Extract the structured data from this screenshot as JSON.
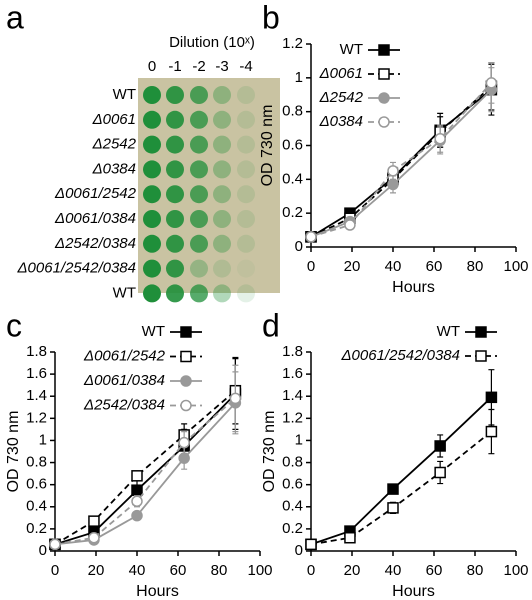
{
  "spot_assay": {
    "label": "a",
    "title": "Dilution (10ˣ)",
    "columns": [
      "0",
      "-1",
      "-2",
      "-3",
      "-4"
    ],
    "rows": [
      "WT",
      "Δ0061",
      "Δ2542",
      "Δ0384",
      "Δ0061/2542",
      "Δ0061/0384",
      "Δ2542/0384",
      "Δ0061/2542/0384",
      "WT"
    ]
  },
  "chart_data": [
    {
      "type": "line",
      "label": "b",
      "xlabel": "Hours",
      "ylabel": "OD 730 nm",
      "xlim": [
        0,
        100
      ],
      "xticks": [
        0,
        20,
        40,
        60,
        80,
        100
      ],
      "ylim": [
        0,
        1.2
      ],
      "yticks": [
        0,
        0.2,
        0.4,
        0.6,
        0.8,
        1,
        1.2
      ],
      "x": [
        0,
        19,
        40,
        63,
        88
      ],
      "series": [
        {
          "name": "WT",
          "color": "#000000",
          "dash": false,
          "marker": "square",
          "filled": true,
          "values": [
            0.06,
            0.2,
            0.41,
            0.69,
            0.93
          ],
          "errors": [
            0.01,
            0.03,
            0.06,
            0.1,
            0.15
          ]
        },
        {
          "name": "Δ0061",
          "color": "#000000",
          "dash": true,
          "marker": "square",
          "filled": false,
          "values": [
            0.06,
            0.17,
            0.4,
            0.68,
            0.95
          ],
          "errors": [
            0.01,
            0.03,
            0.05,
            0.09,
            0.14
          ]
        },
        {
          "name": "Δ2542",
          "color": "#999999",
          "dash": false,
          "marker": "circle",
          "filled": true,
          "values": [
            0.06,
            0.15,
            0.37,
            0.63,
            0.93
          ],
          "errors": [
            0.01,
            0.02,
            0.05,
            0.08,
            0.13
          ]
        },
        {
          "name": "Δ0384",
          "color": "#999999",
          "dash": true,
          "marker": "circle",
          "filled": false,
          "values": [
            0.06,
            0.13,
            0.45,
            0.64,
            0.97
          ],
          "errors": [
            0.01,
            0.02,
            0.05,
            0.08,
            0.12
          ]
        }
      ]
    },
    {
      "type": "line",
      "label": "c",
      "xlabel": "Hours",
      "ylabel": "OD 730 nm",
      "xlim": [
        0,
        100
      ],
      "xticks": [
        0,
        20,
        40,
        60,
        80,
        100
      ],
      "ylim": [
        0,
        1.8
      ],
      "yticks": [
        0,
        0.2,
        0.4,
        0.6,
        0.8,
        1,
        1.2,
        1.4,
        1.6,
        1.8
      ],
      "x": [
        0,
        19,
        40,
        63,
        88
      ],
      "series": [
        {
          "name": "WT",
          "color": "#000000",
          "dash": false,
          "marker": "square",
          "filled": true,
          "values": [
            0.06,
            0.17,
            0.55,
            0.95,
            1.42
          ],
          "errors": [
            0.01,
            0.03,
            0.1,
            0.15,
            0.32
          ]
        },
        {
          "name": "Δ0061/2542",
          "color": "#000000",
          "dash": true,
          "marker": "square",
          "filled": false,
          "values": [
            0.06,
            0.27,
            0.68,
            1.05,
            1.45
          ],
          "errors": [
            0.01,
            0.02,
            0.04,
            0.1,
            0.3
          ]
        },
        {
          "name": "Δ0061/0384",
          "color": "#999999",
          "dash": false,
          "marker": "circle",
          "filled": true,
          "values": [
            0.06,
            0.1,
            0.32,
            0.84,
            1.34
          ],
          "errors": [
            0.01,
            0.02,
            0.03,
            0.1,
            0.28
          ]
        },
        {
          "name": "Δ2542/0384",
          "color": "#999999",
          "dash": true,
          "marker": "circle",
          "filled": false,
          "values": [
            0.06,
            0.12,
            0.45,
            0.98,
            1.38
          ],
          "errors": [
            0.01,
            0.02,
            0.05,
            0.1,
            0.3
          ]
        }
      ]
    },
    {
      "type": "line",
      "label": "d",
      "xlabel": "Hours",
      "ylabel": "OD 730 nm",
      "xlim": [
        0,
        100
      ],
      "xticks": [
        0,
        20,
        40,
        60,
        80,
        100
      ],
      "ylim": [
        0,
        1.8
      ],
      "yticks": [
        0,
        0.2,
        0.4,
        0.6,
        0.8,
        1,
        1.2,
        1.4,
        1.6,
        1.8
      ],
      "x": [
        0,
        19,
        40,
        63,
        88
      ],
      "series": [
        {
          "name": "WT",
          "color": "#000000",
          "dash": false,
          "marker": "square",
          "filled": true,
          "values": [
            0.06,
            0.18,
            0.56,
            0.95,
            1.39
          ],
          "errors": [
            0.01,
            0.02,
            0.03,
            0.1,
            0.25
          ]
        },
        {
          "name": "Δ0061/2542/0384",
          "color": "#000000",
          "dash": true,
          "marker": "square",
          "filled": false,
          "values": [
            0.06,
            0.12,
            0.39,
            0.71,
            1.08
          ],
          "errors": [
            0.01,
            0.02,
            0.05,
            0.1,
            0.2
          ]
        }
      ]
    }
  ]
}
